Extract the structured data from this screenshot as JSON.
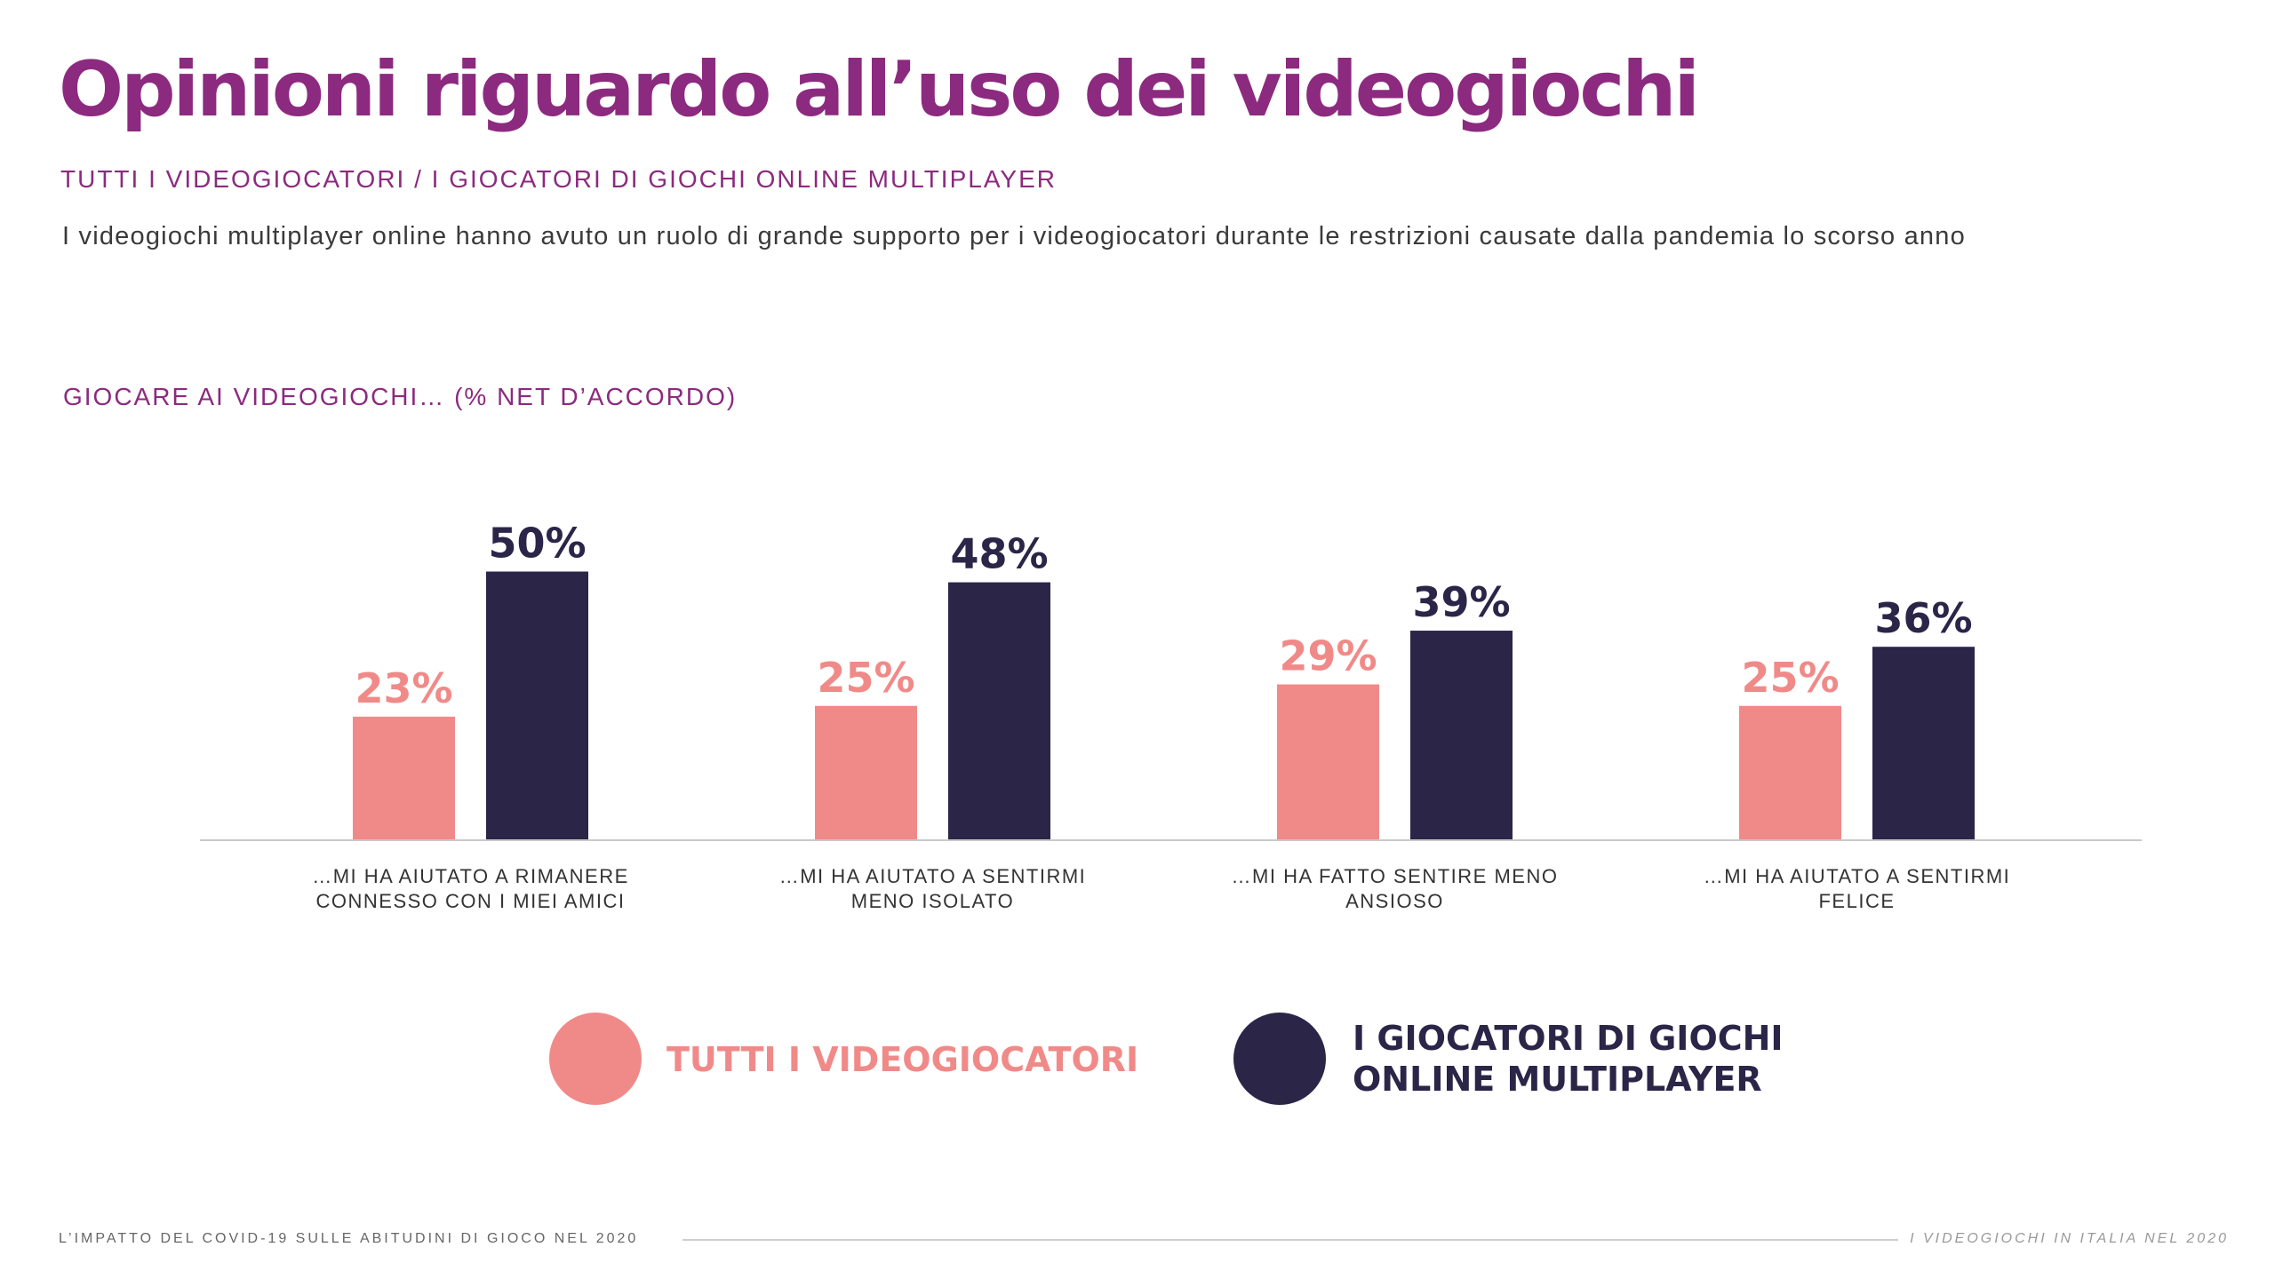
{
  "header": {
    "title": "Opinioni riguardo all’uso dei videogiochi",
    "subtitle": "TUTTI I VIDEOGIOCATORI / I GIOCATORI DI GIOCHI ONLINE MULTIPLAYER",
    "description": "I videogiochi multiplayer online hanno avuto un ruolo di grande supporto per i videogiocatori durante le restrizioni causate dalla pandemia lo scorso anno"
  },
  "chart_data": {
    "type": "bar",
    "title": "GIOCARE AI VIDEOGIOCHI… (% NET D’ACCORDO)",
    "categories": [
      [
        "…MI HA AIUTATO A RIMANERE",
        "CONNESSO CON I MIEI AMICI"
      ],
      [
        "…MI HA AIUTATO A SENTIRMI",
        "MENO ISOLATO"
      ],
      [
        "…MI HA FATTO SENTIRE MENO",
        "ANSIOSO"
      ],
      [
        "…MI HA AIUTATO A SENTIRMI",
        "FELICE"
      ]
    ],
    "series": [
      {
        "name": "TUTTI I VIDEOGIOCATORI",
        "values": [
          23,
          25,
          29,
          25
        ],
        "labels": [
          "23%",
          "25%",
          "29%",
          "25%"
        ],
        "color": "#f08a88"
      },
      {
        "name": "I GIOCATORI DI GIOCHI ONLINE MULTIPLAYER",
        "values": [
          50,
          48,
          39,
          36
        ],
        "labels": [
          "50%",
          "48%",
          "39%",
          "36%"
        ],
        "color": "#2b2548"
      }
    ],
    "legend_lines": [
      [
        "TUTTI I VIDEOGIOCATORI"
      ],
      [
        "I GIOCATORI DI GIOCHI",
        "ONLINE MULTIPLAYER"
      ]
    ],
    "ylim": [
      0,
      55
    ],
    "grid": false,
    "legend_position": "bottom"
  },
  "footer": {
    "left": "L’IMPATTO DEL COVID-19 SULLE ABITUDINI DI GIOCO NEL 2020",
    "right": "I VIDEOGIOCHI IN ITALIA NEL 2020"
  }
}
